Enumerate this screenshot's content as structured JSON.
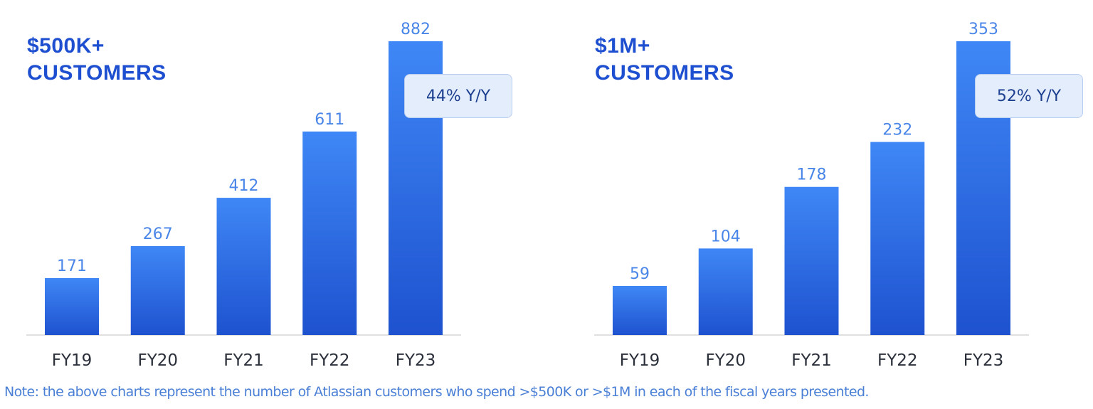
{
  "chart_data": [
    {
      "type": "bar",
      "title": "$500K+ CUSTOMERS",
      "categories": [
        "FY19",
        "FY20",
        "FY21",
        "FY22",
        "FY23"
      ],
      "values": [
        171,
        267,
        412,
        611,
        882
      ],
      "annotation": "44% Y/Y",
      "color": "#2f6ae6"
    },
    {
      "type": "bar",
      "title": "$1M+ CUSTOMERS",
      "categories": [
        "FY19",
        "FY20",
        "FY21",
        "FY22",
        "FY23"
      ],
      "values": [
        59,
        104,
        178,
        232,
        353
      ],
      "annotation": "52% Y/Y",
      "color": "#2f6ae6"
    }
  ],
  "note": "Note: the above charts represent the number of Atlassian customers who spend >$500K or >$1M in each of the fiscal years presented."
}
